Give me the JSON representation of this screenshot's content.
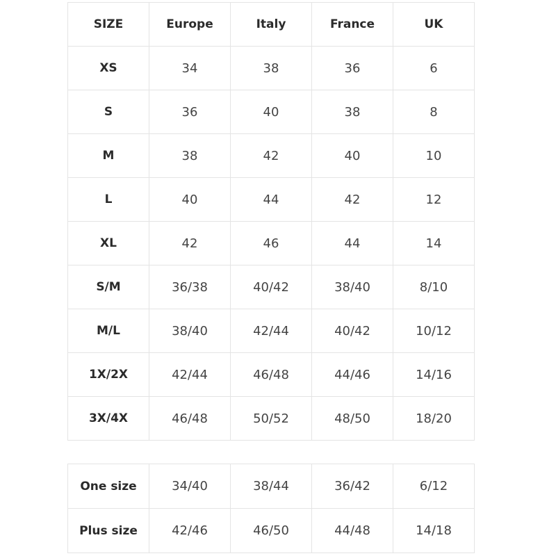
{
  "headers": [
    "SIZE",
    "Europe",
    "Italy",
    "France",
    "UK"
  ],
  "rows": [
    [
      "XS",
      "34",
      "38",
      "36",
      "6"
    ],
    [
      "S",
      "36",
      "40",
      "38",
      "8"
    ],
    [
      "M",
      "38",
      "42",
      "40",
      "10"
    ],
    [
      "L",
      "40",
      "44",
      "42",
      "12"
    ],
    [
      "XL",
      "42",
      "46",
      "44",
      "14"
    ],
    [
      "S/M",
      "36/38",
      "40/42",
      "38/40",
      "8/10"
    ],
    [
      "M/L",
      "38/40",
      "42/44",
      "40/42",
      "10/12"
    ],
    [
      "1X/2X",
      "42/44",
      "46/48",
      "44/46",
      "14/16"
    ],
    [
      "3X/4X",
      "46/48",
      "50/52",
      "48/50",
      "18/20"
    ]
  ],
  "extra_rows": [
    [
      "One size",
      "34/40",
      "38/44",
      "36/42",
      "6/12"
    ],
    [
      "Plus size",
      "42/46",
      "46/50",
      "44/48",
      "14/18"
    ]
  ]
}
